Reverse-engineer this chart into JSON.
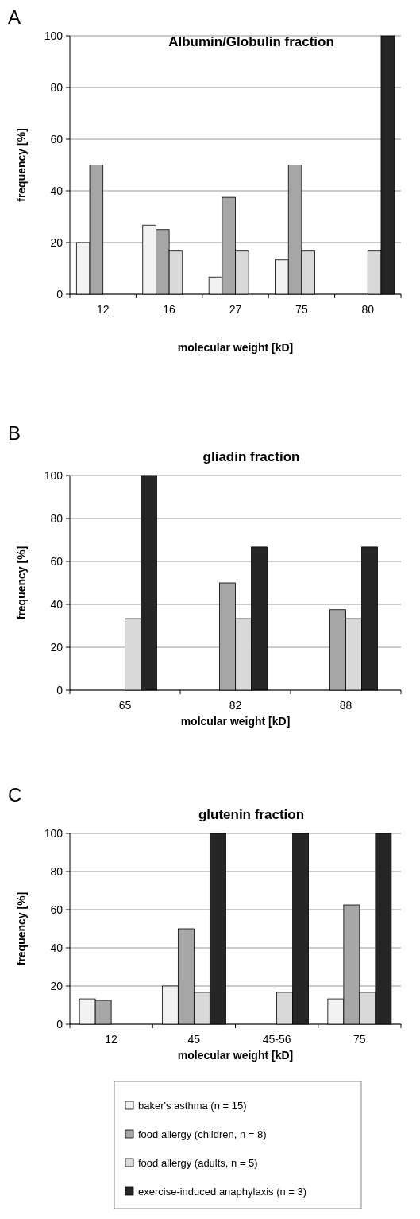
{
  "chart_data": [
    {
      "type": "bar",
      "title": "Albumin/Globulin fraction",
      "xlabel": "molecular weight [kD]",
      "ylabel": "frequency [%]",
      "annotations": [
        "A"
      ],
      "categories": [
        "12",
        "16",
        "27",
        "75",
        "80"
      ],
      "ylim": [
        0,
        100
      ],
      "yticks": [
        0,
        20,
        40,
        60,
        80,
        100
      ],
      "grid": "y",
      "series": [
        {
          "color": "#f2f2f2",
          "values": [
            20,
            26.7,
            6.7,
            13.3,
            null
          ]
        },
        {
          "color": "#a6a6a6",
          "values": [
            50,
            25,
            37.5,
            50,
            null
          ]
        },
        {
          "color": "#d9d9d9",
          "values": [
            null,
            16.7,
            16.7,
            16.7,
            16.7
          ]
        },
        {
          "color": "#262626",
          "values": [
            null,
            null,
            null,
            null,
            100
          ]
        }
      ]
    },
    {
      "type": "bar",
      "title": "gliadin fraction",
      "xlabel": "molcular weight [kD]",
      "ylabel": "frequency [%]",
      "annotations": [
        "B"
      ],
      "categories": [
        "65",
        "82",
        "88"
      ],
      "ylim": [
        0,
        100
      ],
      "yticks": [
        0,
        20,
        40,
        60,
        80,
        100
      ],
      "grid": "y",
      "series": [
        {
          "color": "#a6a6a6",
          "values": [
            null,
            50,
            37.5
          ]
        },
        {
          "color": "#d9d9d9",
          "values": [
            33.3,
            33.3,
            33.3
          ]
        },
        {
          "color": "#262626",
          "values": [
            100,
            66.7,
            66.7
          ]
        }
      ]
    },
    {
      "type": "bar",
      "title": "glutenin fraction",
      "xlabel": "molecular weight [kD]",
      "ylabel": "frequency [%]",
      "annotations": [
        "C"
      ],
      "categories": [
        "12",
        "45",
        "45-56",
        "75"
      ],
      "ylim": [
        0,
        100
      ],
      "yticks": [
        0,
        20,
        40,
        60,
        80,
        100
      ],
      "grid": "y",
      "legend": "bottom",
      "series": [
        {
          "name": "baker's asthma (n = 15)",
          "color": "#f2f2f2",
          "values": [
            13.3,
            20,
            null,
            13.3
          ]
        },
        {
          "name": "food allergy (children, n = 8)",
          "color": "#a6a6a6",
          "values": [
            12.5,
            50,
            null,
            62.5
          ]
        },
        {
          "name": "food allergy (adults, n = 5)",
          "color": "#d9d9d9",
          "values": [
            null,
            16.7,
            16.7,
            16.7
          ]
        },
        {
          "name": "exercise-induced anaphylaxis (n = 3)",
          "color": "#262626",
          "values": [
            null,
            100,
            100,
            100
          ]
        }
      ]
    }
  ]
}
